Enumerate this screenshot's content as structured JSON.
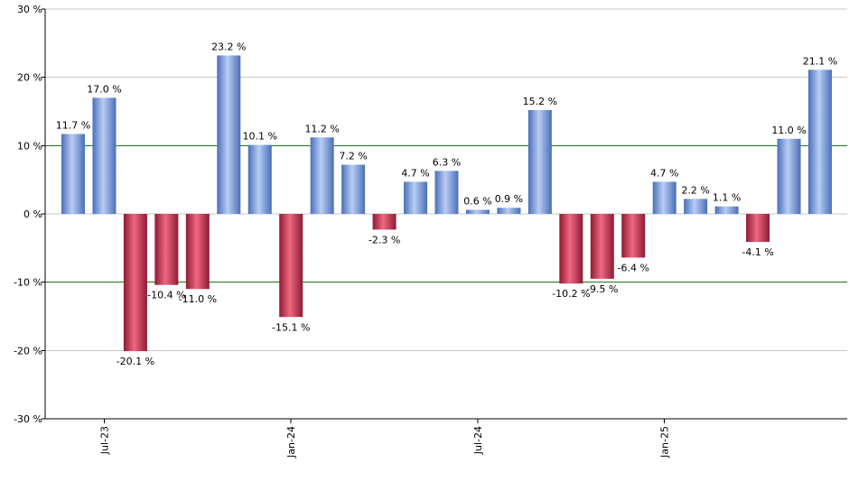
{
  "chart_data": {
    "type": "bar",
    "title": "",
    "xlabel": "",
    "ylabel": "",
    "ylim": [
      -30,
      30
    ],
    "yticks": [
      -30,
      -20,
      -10,
      0,
      10,
      20,
      30
    ],
    "ytick_labels": [
      "-30 %",
      "-20 %",
      "-10 %",
      "0 %",
      "10 %",
      "20 %",
      "30 %"
    ],
    "x_tick_labels": [
      {
        "label": "Jul-23",
        "index": 1
      },
      {
        "label": "Jan-24",
        "index": 7
      },
      {
        "label": "Jul-24",
        "index": 13
      },
      {
        "label": "Jan-25",
        "index": 19
      }
    ],
    "highlight_lines": [
      10,
      -10
    ],
    "value_suffix": " %",
    "values": [
      11.7,
      17.0,
      -20.1,
      -10.4,
      -11.0,
      23.2,
      10.1,
      -15.1,
      11.2,
      7.2,
      -2.3,
      4.7,
      6.3,
      0.6,
      0.9,
      15.2,
      -10.2,
      -9.5,
      -6.4,
      4.7,
      2.2,
      1.1,
      -4.1,
      11.0,
      21.1
    ],
    "data_labels": [
      "11.7 %",
      "17.0 %",
      "-20.1 %",
      "-10.4 %",
      "-11.0 %",
      "23.2 %",
      "10.1 %",
      "-15.1 %",
      "11.2 %",
      "7.2 %",
      "-2.3 %",
      "4.7 %",
      "6.3 %",
      "0.6 %",
      "0.9 %",
      "15.2 %",
      "-10.2 %",
      "-9.5 %",
      "-6.4 %",
      "4.7 %",
      "2.2 %",
      "1.1 %",
      "-4.1 %",
      "11.0 %",
      "21.1 %"
    ],
    "colors": {
      "positive_dark": "#4a6fb8",
      "positive_light": "#b8cdf4",
      "negative_dark": "#8e1a35",
      "negative_light": "#f06880",
      "grid": "#c8c8c8",
      "highlight": "#1a7a1a",
      "axis": "#000000"
    },
    "grid": true,
    "legend": "none"
  }
}
